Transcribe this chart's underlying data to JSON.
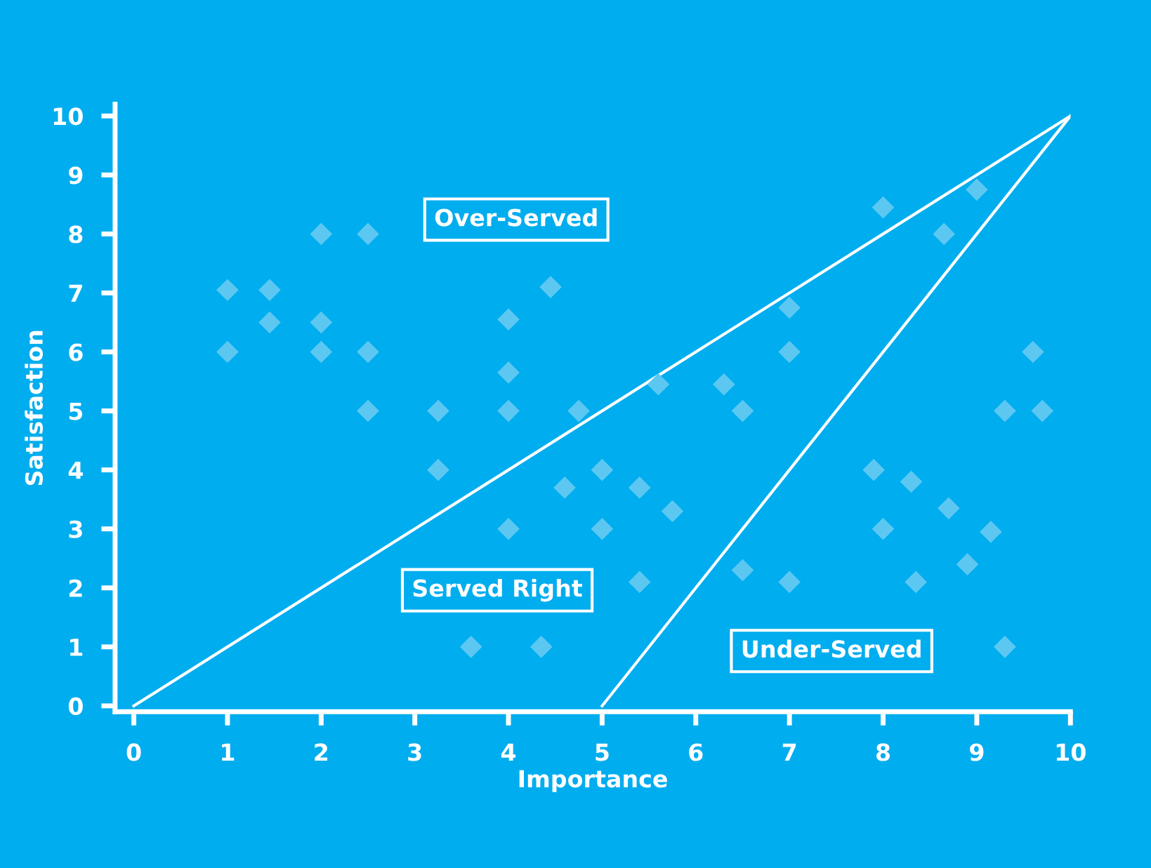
{
  "chart_data": {
    "type": "scatter",
    "xlabel": "Importance",
    "ylabel": "Satisfaction",
    "xlim": [
      -0.2,
      10
    ],
    "ylim": [
      -0.1,
      10.2
    ],
    "xticks": [
      0,
      1,
      2,
      3,
      4,
      5,
      6,
      7,
      8,
      9,
      10
    ],
    "yticks": [
      0,
      1,
      2,
      3,
      4,
      5,
      6,
      7,
      8,
      9,
      10
    ],
    "grid": false,
    "legend": false,
    "marker": "diamond",
    "annotations": [
      "Over-Served",
      "Served Right",
      "Under-Served"
    ],
    "series": [
      {
        "color": "#5cc8f2",
        "x": [
          1,
          1,
          1.45,
          1.45,
          2,
          2,
          2,
          2.5,
          2.5,
          2.5,
          3.25,
          3.25,
          3.6,
          4,
          4,
          4,
          4,
          4.35,
          4.45,
          4.6,
          4.75,
          5,
          5,
          5.4,
          5.4,
          5.6,
          5.75,
          6.3,
          6.5,
          6.5,
          7,
          7,
          7,
          7.9,
          8,
          8,
          8.3,
          8.35,
          8.65,
          8.7,
          8.9,
          9,
          9.15,
          9.3,
          9.3,
          9.6,
          9.7
        ],
        "values": [
          6,
          7.05,
          7.05,
          6.5,
          8,
          6.5,
          6,
          8,
          6,
          5,
          5,
          4,
          1,
          6.55,
          5.65,
          5,
          3,
          1,
          7.1,
          3.7,
          5,
          4,
          3,
          3.7,
          2.1,
          5.45,
          3.3,
          5.45,
          5,
          2.3,
          6.75,
          6,
          2.1,
          4,
          8.45,
          3,
          3.8,
          2.1,
          8,
          3.35,
          2.4,
          8.75,
          2.95,
          5,
          1,
          6,
          5
        ]
      },
      {
        "type": "line",
        "color": "#ffffff",
        "marker": "none",
        "x": [
          0,
          10
        ],
        "values": [
          0,
          10
        ]
      },
      {
        "type": "line",
        "color": "#ffffff",
        "marker": "none",
        "x": [
          5,
          10
        ],
        "values": [
          0,
          10
        ]
      }
    ]
  }
}
